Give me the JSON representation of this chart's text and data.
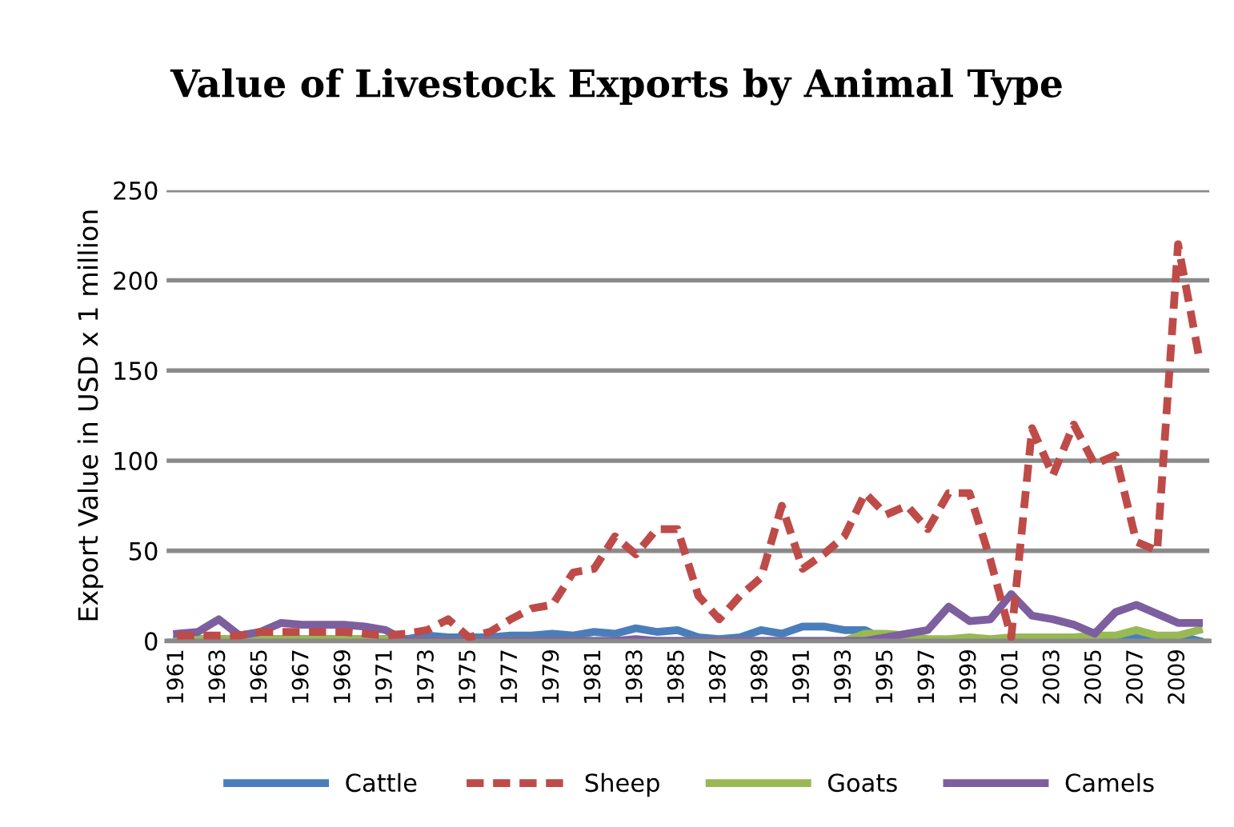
{
  "chart_data": {
    "type": "line",
    "title": "Value of Livestock Exports by Animal Type",
    "ylabel": "Export Value in USD x 1 million",
    "categories": [
      "1961",
      null,
      "1963",
      null,
      "1965",
      null,
      "1967",
      null,
      "1969",
      null,
      "1971",
      null,
      "1973",
      null,
      "1975",
      null,
      "1977",
      null,
      "1979",
      null,
      "1981",
      null,
      "1983",
      null,
      "1985",
      null,
      "1987",
      null,
      "1989",
      null,
      "1991",
      null,
      "1993",
      null,
      "1995",
      null,
      "1997",
      null,
      "1999",
      null,
      "2001",
      null,
      "2003",
      null,
      "2005",
      null,
      "2007",
      null,
      "2009",
      null
    ],
    "series": [
      {
        "name": "Cattle",
        "color": "#4a7ebb",
        "line_style": "solid",
        "values": [
          1,
          1,
          1,
          1,
          1,
          1,
          1,
          1,
          1,
          1,
          1,
          1,
          3,
          2,
          2,
          2,
          3,
          3,
          4,
          3,
          5,
          4,
          7,
          5,
          6,
          2,
          1,
          2,
          6,
          4,
          8,
          8,
          6,
          6,
          0,
          0,
          0,
          0,
          0,
          0,
          0,
          0,
          0,
          0,
          0,
          0,
          2,
          0,
          3,
          0
        ]
      },
      {
        "name": "Sheep",
        "color": "#be4b48",
        "line_style": "dashed",
        "values": [
          3,
          3,
          3,
          3,
          5,
          5,
          5,
          5,
          5,
          4,
          3,
          4,
          6,
          12,
          2,
          5,
          12,
          18,
          20,
          38,
          40,
          58,
          48,
          62,
          62,
          25,
          12,
          25,
          35,
          75,
          40,
          48,
          58,
          82,
          70,
          75,
          62,
          82,
          82,
          45,
          2,
          118,
          92,
          120,
          98,
          103,
          55,
          50,
          220,
          158
        ]
      },
      {
        "name": "Goats",
        "color": "#98b954",
        "line_style": "solid",
        "values": [
          1,
          1,
          1,
          1,
          1,
          1,
          1,
          1,
          1,
          1,
          1,
          0,
          0,
          0,
          0,
          0,
          0,
          0,
          0,
          0,
          0,
          0,
          0,
          0,
          0,
          0,
          0,
          0,
          0,
          0,
          0,
          0,
          0,
          4,
          4,
          3,
          1,
          1,
          2,
          1,
          2,
          2,
          2,
          2,
          3,
          3,
          6,
          3,
          3,
          6
        ]
      },
      {
        "name": "Camels",
        "color": "#7d5fa0",
        "line_style": "solid",
        "values": [
          4,
          5,
          12,
          3,
          5,
          10,
          9,
          9,
          9,
          8,
          6,
          0,
          0,
          0,
          0,
          0,
          0,
          0,
          0,
          0,
          0,
          0,
          1,
          0,
          0,
          0,
          0,
          0,
          0,
          0,
          0,
          0,
          0,
          0,
          2,
          4,
          6,
          19,
          11,
          12,
          26,
          14,
          12,
          9,
          4,
          16,
          20,
          15,
          10,
          10
        ]
      }
    ],
    "ylim": [
      0,
      250
    ],
    "yticks": [
      0,
      50,
      100,
      150,
      200,
      250
    ],
    "grid": "y",
    "legend": "bottom",
    "marker": "none"
  }
}
